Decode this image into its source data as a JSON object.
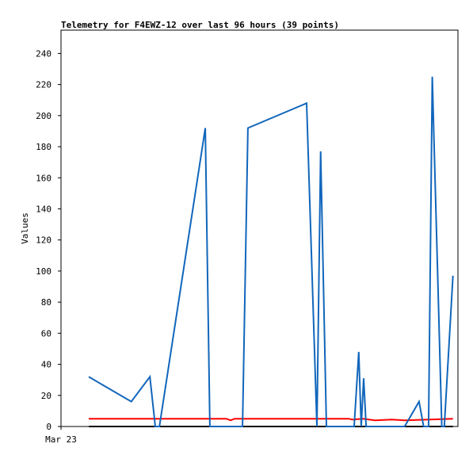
{
  "chart_data": {
    "type": "line",
    "title": "Telemetry for F4EWZ-12 over last 96 hours (39 points)",
    "y_label": "Values",
    "xlim": [
      0,
      96
    ],
    "xticks": [
      {
        "value": 0,
        "label": "Mar 23"
      }
    ],
    "ylim": [
      0,
      255
    ],
    "yticks": [
      0,
      20,
      40,
      60,
      80,
      100,
      120,
      140,
      160,
      180,
      200,
      220,
      240
    ],
    "grid": false,
    "series": [
      {
        "color": "#000000",
        "x": [
          6.7,
          94.8
        ],
        "values": [
          0,
          0
        ]
      },
      {
        "color": "#ff0000",
        "x": [
          6.7,
          40,
          41,
          42,
          69.5,
          70.5,
          73,
          76,
          80,
          83,
          94.8
        ],
        "values": [
          5,
          5,
          4,
          5,
          5,
          4.5,
          5,
          4,
          4.5,
          4,
          5
        ]
      },
      {
        "color": "#1166bb",
        "x": [
          6.7,
          17.0,
          21.5,
          22.8,
          23.8,
          34.9,
          36.0,
          43.9,
          45.2,
          59.4,
          61.9,
          62.8,
          64.2,
          70.9,
          72.0,
          72.6,
          73.2,
          73.8,
          83.1,
          86.6,
          87.7,
          88.9,
          89.8,
          92.1,
          92.7,
          94.8
        ],
        "values": [
          32,
          16,
          32,
          0,
          0,
          192,
          0,
          0,
          192,
          208,
          0,
          177,
          0,
          0,
          48,
          0,
          31,
          0,
          0,
          16,
          0,
          0,
          225,
          0,
          0,
          97
        ]
      }
    ]
  }
}
